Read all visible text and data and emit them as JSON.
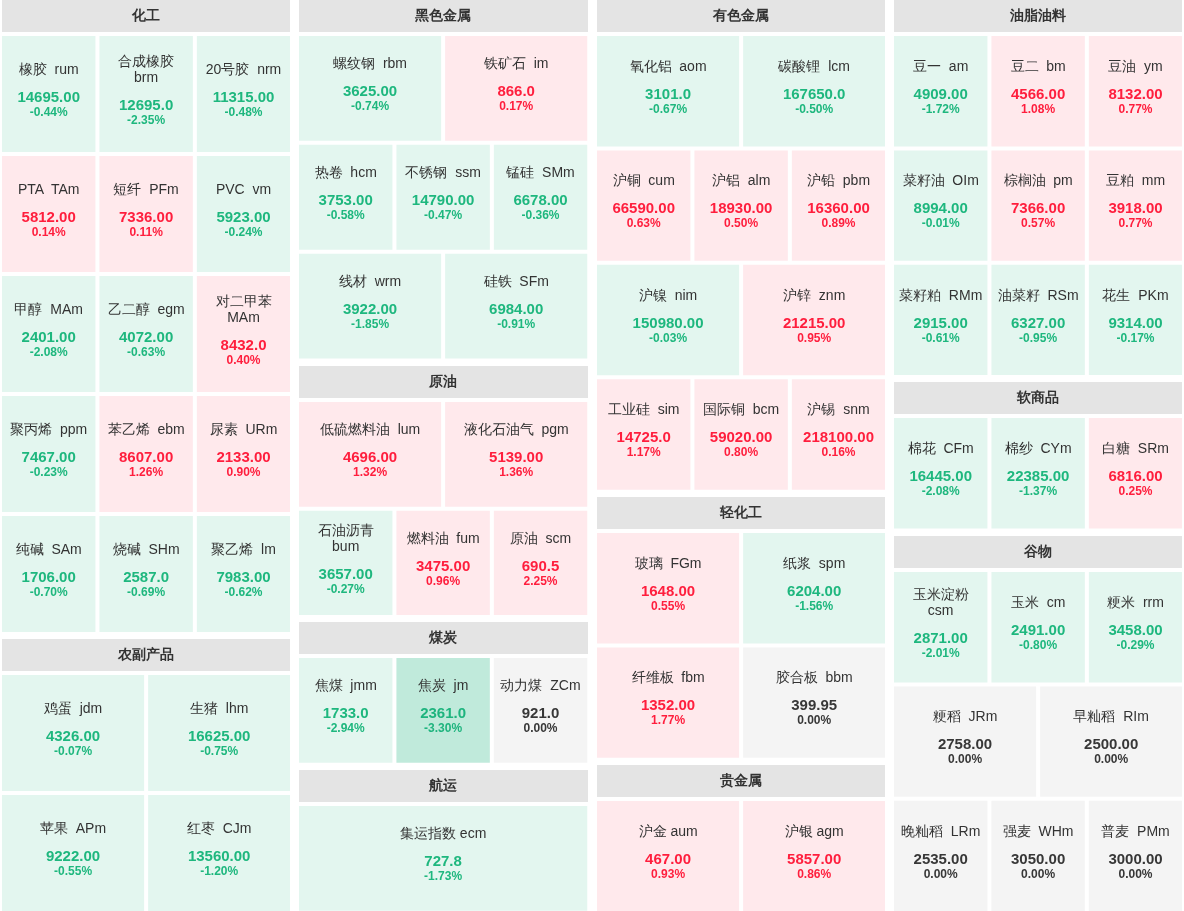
{
  "chart_data": [
    {
      "type": "other",
      "title": "化工",
      "categories": [
        "橡胶  rum",
        "合成橡胶  brm",
        "20号胶  nrm",
        "PTA  TAm",
        "短纤  PFm",
        "PVC  vm",
        "甲醇  MAm",
        "乙二醇  egm",
        "对二甲苯  MAm",
        "聚丙烯  ppm",
        "苯乙烯  ebm",
        "尿素  URm",
        "纯碱  SAm",
        "烧碱  SHm",
        "聚乙烯  lm"
      ],
      "series": [
        {
          "colors": [
            "#e3f6ef",
            "#e3f6ef",
            "#e3f6ef",
            "#ffe9ec",
            "#ffe9ec",
            "#e3f6ef",
            "#e3f6ef",
            "#e3f6ef",
            "#ffe9ec",
            "#e3f6ef",
            "#ffe9ec",
            "#ffe9ec",
            "#e3f6ef",
            "#e3f6ef",
            "#e3f6ef"
          ],
          "values": [
            14695,
            12695,
            11315,
            5812,
            7336,
            5923,
            2401,
            4072,
            8432,
            7467,
            8607,
            2133,
            1706,
            2587,
            7983
          ],
          "value_labels": [
            "14695.00",
            "12695.0",
            "11315.00",
            "5812.00",
            "7336.00",
            "5923.00",
            "2401.00",
            "4072.00",
            "8432.0",
            "7467.00",
            "8607.00",
            "2133.00",
            "1706.00",
            "2587.0",
            "7983.00"
          ]
        },
        {
          "values": [
            -0.44,
            -2.35,
            -0.48,
            0.14,
            0.11,
            -0.24,
            -2.08,
            -0.63,
            0.4,
            -0.23,
            1.26,
            0.9,
            -0.7,
            -0.69,
            -0.62
          ],
          "value_labels": [
            "-0.44%",
            "-2.35%",
            "-0.48%",
            "0.14%",
            "0.11%",
            "-0.24%",
            "-2.08%",
            "-0.63%",
            "0.40%",
            "-0.23%",
            "1.26%",
            "0.90%",
            "-0.70%",
            "-0.69%",
            "-0.62%"
          ]
        }
      ]
    },
    {
      "type": "other",
      "title": "黑色金属",
      "categories": [
        "螺纹钢  rbm",
        "铁矿石  im",
        "热卷  hcm",
        "不锈钢  ssm",
        "锰硅  SMm",
        "线材  wrm",
        "硅铁  SFm"
      ],
      "series": [
        {
          "colors": [
            "#e3f6ef",
            "#ffe9ec",
            "#e3f6ef",
            "#e3f6ef",
            "#e3f6ef",
            "#e3f6ef",
            "#e3f6ef"
          ],
          "values": [
            3625,
            866,
            3753,
            14790,
            6678,
            3922,
            6984
          ],
          "value_labels": [
            "3625.00",
            "866.0",
            "3753.00",
            "14790.00",
            "6678.00",
            "3922.00",
            "6984.00"
          ]
        },
        {
          "values": [
            -0.74,
            0.17,
            -0.58,
            -0.47,
            -0.36,
            -1.85,
            -0.91
          ],
          "value_labels": [
            "-0.74%",
            "0.17%",
            "-0.58%",
            "-0.47%",
            "-0.36%",
            "-1.85%",
            "-0.91%"
          ]
        }
      ]
    },
    {
      "type": "other",
      "title": "有色金属",
      "categories": [
        "氧化铝  aom",
        "碳酸锂  lcm",
        "沪铜  cum",
        "沪铝  alm",
        "沪铅  pbm",
        "沪镍  nim",
        "沪锌  znm",
        "工业硅  sim",
        "国际铜  bcm",
        "沪锡  snm"
      ],
      "series": [
        {
          "colors": [
            "#e3f6ef",
            "#e3f6ef",
            "#ffe9ec",
            "#ffe9ec",
            "#ffe9ec",
            "#e3f6ef",
            "#ffe9ec",
            "#ffe9ec",
            "#ffe9ec",
            "#ffe9ec"
          ],
          "values": [
            3101,
            167650,
            66590,
            18930,
            16360,
            150980,
            21215,
            14725,
            59020,
            218100
          ],
          "value_labels": [
            "3101.0",
            "167650.0",
            "66590.00",
            "18930.00",
            "16360.00",
            "150980.00",
            "21215.00",
            "14725.0",
            "59020.00",
            "218100.00"
          ]
        },
        {
          "values": [
            -0.67,
            -0.5,
            0.63,
            0.5,
            0.89,
            -0.03,
            0.95,
            1.17,
            0.8,
            0.16
          ],
          "value_labels": [
            "-0.67%",
            "-0.50%",
            "0.63%",
            "0.50%",
            "0.89%",
            "-0.03%",
            "0.95%",
            "1.17%",
            "0.80%",
            "0.16%"
          ]
        }
      ]
    },
    {
      "type": "other",
      "title": "油脂油料",
      "categories": [
        "豆一  am",
        "豆二  bm",
        "豆油  ym",
        "菜籽油  OIm",
        "棕榈油  pm",
        "豆粕  mm",
        "菜籽粕  RMm",
        "油菜籽  RSm",
        "花生  PKm"
      ],
      "series": [
        {
          "colors": [
            "#e3f6ef",
            "#ffe9ec",
            "#ffe9ec",
            "#e3f6ef",
            "#ffe9ec",
            "#ffe9ec",
            "#e3f6ef",
            "#e3f6ef",
            "#e3f6ef"
          ],
          "values": [
            4909,
            4566,
            8132,
            8994,
            7366,
            3918,
            2915,
            6327,
            9314
          ],
          "value_labels": [
            "4909.00",
            "4566.00",
            "8132.00",
            "8994.00",
            "7366.00",
            "3918.00",
            "2915.00",
            "6327.00",
            "9314.00"
          ]
        },
        {
          "values": [
            -1.72,
            1.08,
            0.77,
            -0.01,
            0.57,
            0.77,
            -0.61,
            -0.95,
            -0.17
          ],
          "value_labels": [
            "-1.72%",
            "1.08%",
            "0.77%",
            "-0.01%",
            "0.57%",
            "0.77%",
            "-0.61%",
            "-0.95%",
            "-0.17%"
          ]
        }
      ]
    },
    {
      "type": "other",
      "title": "原油",
      "categories": [
        "低硫燃料油  lum",
        "液化石油气  pgm",
        "石油沥青  bum",
        "燃料油  fum",
        "原油  scm"
      ],
      "series": [
        {
          "colors": [
            "#ffe9ec",
            "#ffe9ec",
            "#e3f6ef",
            "#ffe9ec",
            "#ffe9ec"
          ],
          "values": [
            4696,
            5139,
            3657,
            3475,
            690.5
          ],
          "value_labels": [
            "4696.00",
            "5139.00",
            "3657.00",
            "3475.00",
            "690.5"
          ]
        },
        {
          "values": [
            1.32,
            1.36,
            -0.27,
            0.96,
            2.25
          ],
          "value_labels": [
            "1.32%",
            "1.36%",
            "-0.27%",
            "0.96%",
            "2.25%"
          ]
        }
      ]
    },
    {
      "type": "other",
      "title": "软商品",
      "categories": [
        "棉花  CFm",
        "棉纱  CYm",
        "白糖  SRm"
      ],
      "series": [
        {
          "colors": [
            "#e3f6ef",
            "#e3f6ef",
            "#ffe9ec"
          ],
          "values": [
            16445,
            22385,
            6816
          ],
          "value_labels": [
            "16445.00",
            "22385.00",
            "6816.00"
          ]
        },
        {
          "values": [
            -2.08,
            -1.37,
            0.25
          ],
          "value_labels": [
            "-2.08%",
            "-1.37%",
            "0.25%"
          ]
        }
      ]
    },
    {
      "type": "other",
      "title": "轻化工",
      "categories": [
        "玻璃  FGm",
        "纸浆  spm",
        "纤维板  fbm",
        "胶合板  bbm"
      ],
      "series": [
        {
          "colors": [
            "#ffe9ec",
            "#e3f6ef",
            "#ffe9ec",
            "#f4f4f4"
          ],
          "values": [
            1648,
            6204,
            1352,
            399.95
          ],
          "value_labels": [
            "1648.00",
            "6204.00",
            "1352.00",
            "399.95"
          ]
        },
        {
          "values": [
            0.55,
            -1.56,
            1.77,
            0
          ],
          "value_labels": [
            "0.55%",
            "-1.56%",
            "1.77%",
            "0.00%"
          ]
        }
      ]
    },
    {
      "type": "other",
      "title": "谷物",
      "categories": [
        "玉米淀粉  csm",
        "玉米  cm",
        "粳米  rrm",
        "粳稻  JRm",
        "早籼稻  RIm",
        "晚籼稻  LRm",
        "强麦  WHm",
        "普麦  PMm"
      ],
      "series": [
        {
          "colors": [
            "#e3f6ef",
            "#e3f6ef",
            "#e3f6ef",
            "#f4f4f4",
            "#f4f4f4",
            "#f4f4f4",
            "#f4f4f4",
            "#f4f4f4"
          ],
          "values": [
            2871,
            2491,
            3458,
            2758,
            2500,
            2535,
            3050,
            3000
          ],
          "value_labels": [
            "2871.00",
            "2491.00",
            "3458.00",
            "2758.00",
            "2500.00",
            "2535.00",
            "3050.00",
            "3000.00"
          ]
        },
        {
          "values": [
            -2.01,
            -0.8,
            -0.29,
            0,
            0,
            0,
            0,
            0
          ],
          "value_labels": [
            "-2.01%",
            "-0.80%",
            "-0.29%",
            "0.00%",
            "0.00%",
            "0.00%",
            "0.00%",
            "0.00%"
          ]
        }
      ]
    },
    {
      "type": "other",
      "title": "农副产品",
      "categories": [
        "鸡蛋  jdm",
        "生猪  lhm",
        "苹果  APm",
        "红枣  CJm"
      ],
      "series": [
        {
          "colors": [
            "#e3f6ef",
            "#e3f6ef",
            "#e3f6ef",
            "#e3f6ef"
          ],
          "values": [
            4326,
            16625,
            9222,
            13560
          ],
          "value_labels": [
            "4326.00",
            "16625.00",
            "9222.00",
            "13560.00"
          ]
        },
        {
          "values": [
            -0.07,
            -0.75,
            -0.55,
            -1.2
          ],
          "value_labels": [
            "-0.07%",
            "-0.75%",
            "-0.55%",
            "-1.20%"
          ]
        }
      ]
    },
    {
      "type": "other",
      "title": "煤炭",
      "categories": [
        "焦煤  jmm",
        "焦炭  jm",
        "动力煤  ZCm"
      ],
      "series": [
        {
          "colors": [
            "#e3f6ef",
            "#c0eadb",
            "#f4f4f4"
          ],
          "values": [
            1733,
            2361,
            921
          ],
          "value_labels": [
            "1733.0",
            "2361.0",
            "921.0"
          ]
        },
        {
          "values": [
            -2.94,
            -3.3,
            0
          ],
          "value_labels": [
            "-2.94%",
            "-3.30%",
            "0.00%"
          ]
        }
      ]
    },
    {
      "type": "other",
      "title": "贵金属",
      "categories": [
        "沪金 aum",
        "沪银 agm"
      ],
      "series": [
        {
          "colors": [
            "#ffe9ec",
            "#ffe9ec"
          ],
          "values": [
            467,
            5857
          ],
          "value_labels": [
            "467.00",
            "5857.00"
          ]
        },
        {
          "values": [
            0.93,
            0.86
          ],
          "value_labels": [
            "0.93%",
            "0.86%"
          ]
        }
      ]
    },
    {
      "type": "other",
      "title": "航运",
      "categories": [
        "集运指数 ecm"
      ],
      "series": [
        {
          "colors": [
            "#e3f6ef"
          ],
          "values": [
            727.8
          ],
          "value_labels": [
            "727.8"
          ]
        },
        {
          "values": [
            -1.73
          ],
          "value_labels": [
            "-1.73%"
          ]
        }
      ]
    }
  ]
}
